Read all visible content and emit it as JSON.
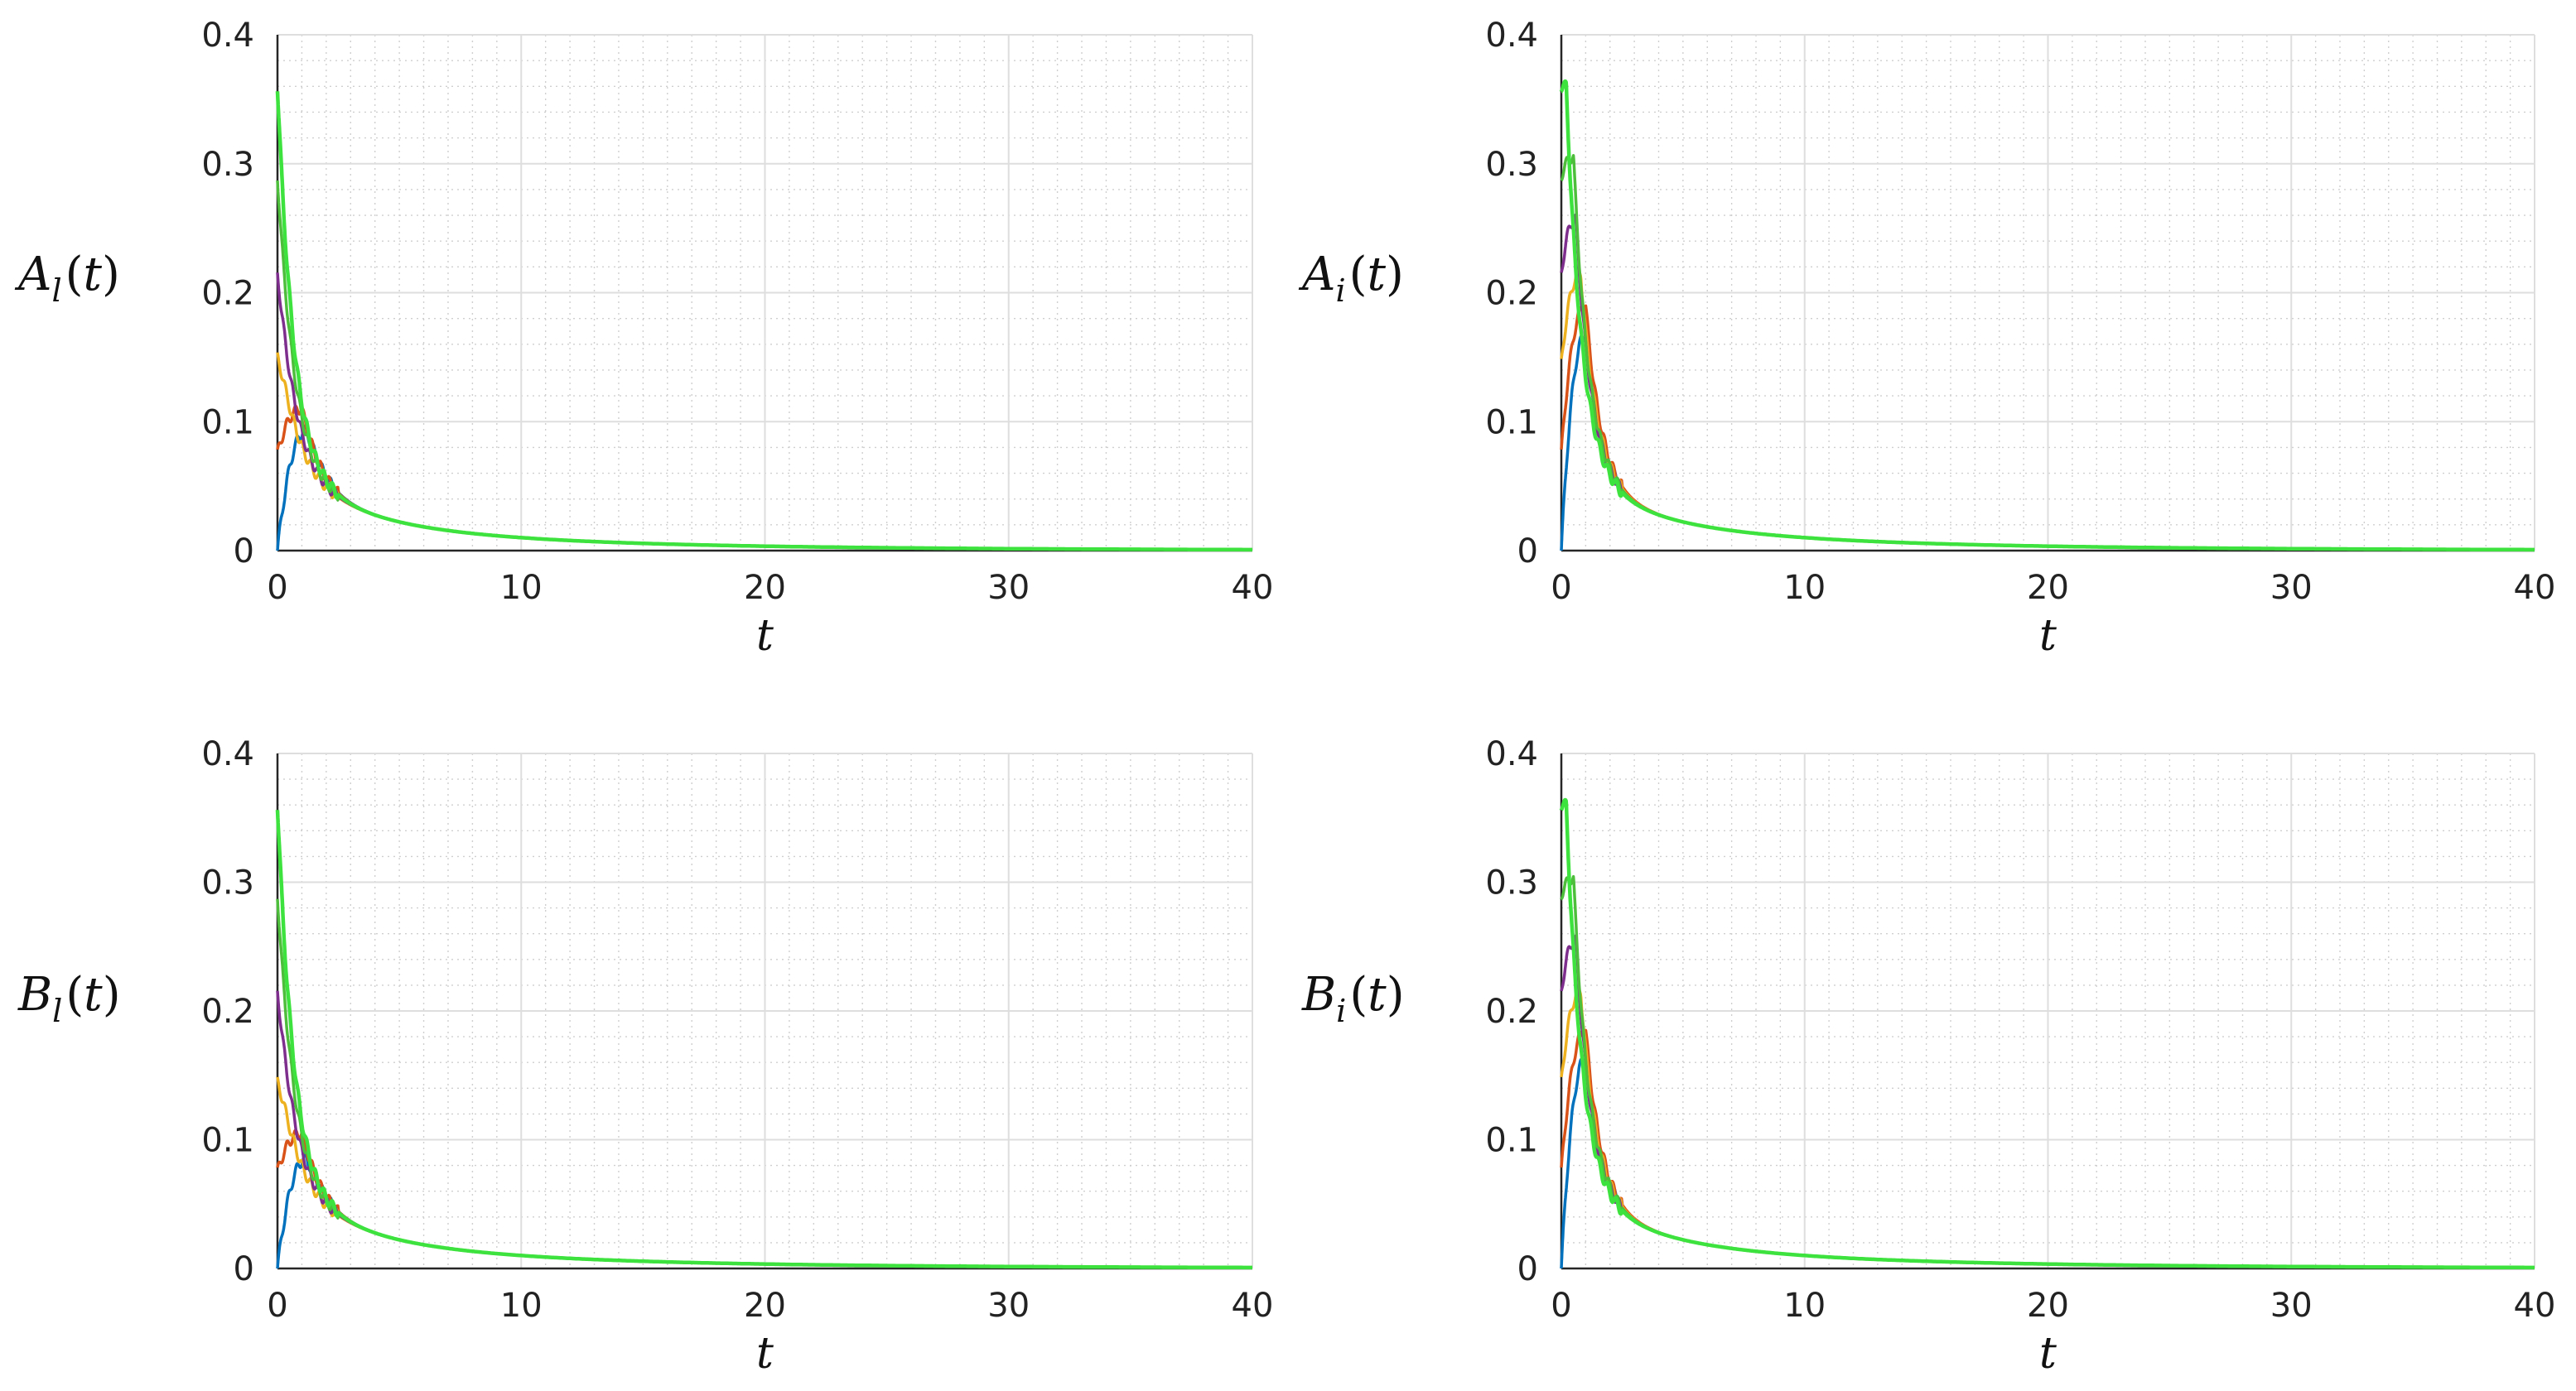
{
  "chart_data": [
    {
      "type": "line",
      "ylabel": {
        "main": "A",
        "sub": "l",
        "arg": "t"
      },
      "xlabel": "t",
      "xlim": [
        0,
        40
      ],
      "ylim": [
        0,
        0.4
      ],
      "xticks": [
        "0",
        "10",
        "20",
        "30",
        "40"
      ],
      "yticks": [
        "0",
        "0.1",
        "0.2",
        "0.3",
        "0.4"
      ],
      "grid": true,
      "minor_grid": true,
      "series": [
        {
          "color": "#0072BD",
          "start": 0.0,
          "peak": 0.093,
          "tpeak": 1.2
        },
        {
          "color": "#D95319",
          "start": 0.075,
          "peak": 0.11,
          "tpeak": 1.0
        },
        {
          "color": "#EDB120",
          "start": 0.15,
          "peak": 0.15,
          "tpeak": 0.0
        },
        {
          "color": "#7E2F8E",
          "start": 0.215,
          "peak": 0.215,
          "tpeak": 0.0
        },
        {
          "color": "#4DBE3C",
          "start": 0.29,
          "peak": 0.29,
          "tpeak": 0.0
        },
        {
          "color": "#3EE23E",
          "start": 0.36,
          "peak": 0.36,
          "tpeak": 0.0
        }
      ]
    },
    {
      "type": "line",
      "ylabel": {
        "main": "A",
        "sub": "i",
        "arg": "t"
      },
      "xlabel": "t",
      "xlim": [
        0,
        40
      ],
      "ylim": [
        0,
        0.4
      ],
      "xticks": [
        "0",
        "10",
        "20",
        "30",
        "40"
      ],
      "yticks": [
        "0",
        "0.1",
        "0.2",
        "0.3",
        "0.4"
      ],
      "grid": true,
      "minor_grid": true,
      "series": [
        {
          "color": "#0072BD",
          "start": 0.0,
          "peak": 0.167,
          "tpeak": 1.0
        },
        {
          "color": "#D95319",
          "start": 0.075,
          "peak": 0.19,
          "tpeak": 1.0
        },
        {
          "color": "#EDB120",
          "start": 0.145,
          "peak": 0.215,
          "tpeak": 0.8
        },
        {
          "color": "#7E2F8E",
          "start": 0.215,
          "peak": 0.257,
          "tpeak": 0.6
        },
        {
          "color": "#4DBE3C",
          "start": 0.29,
          "peak": 0.305,
          "tpeak": 0.5
        },
        {
          "color": "#3EE23E",
          "start": 0.36,
          "peak": 0.36,
          "tpeak": 0.2
        }
      ]
    },
    {
      "type": "line",
      "ylabel": {
        "main": "B",
        "sub": "l",
        "arg": "t"
      },
      "xlabel": "t",
      "xlim": [
        0,
        40
      ],
      "ylim": [
        0,
        0.4
      ],
      "xticks": [
        "0",
        "10",
        "20",
        "30",
        "40"
      ],
      "yticks": [
        "0",
        "0.1",
        "0.2",
        "0.3",
        "0.4"
      ],
      "grid": true,
      "minor_grid": true,
      "series": [
        {
          "color": "#0072BD",
          "start": 0.0,
          "peak": 0.085,
          "tpeak": 1.2
        },
        {
          "color": "#D95319",
          "start": 0.075,
          "peak": 0.105,
          "tpeak": 1.0
        },
        {
          "color": "#EDB120",
          "start": 0.145,
          "peak": 0.145,
          "tpeak": 0.0
        },
        {
          "color": "#7E2F8E",
          "start": 0.215,
          "peak": 0.215,
          "tpeak": 0.0
        },
        {
          "color": "#4DBE3C",
          "start": 0.29,
          "peak": 0.29,
          "tpeak": 0.0
        },
        {
          "color": "#3EE23E",
          "start": 0.36,
          "peak": 0.36,
          "tpeak": 0.0
        }
      ]
    },
    {
      "type": "line",
      "ylabel": {
        "main": "B",
        "sub": "i",
        "arg": "t"
      },
      "xlabel": "t",
      "xlim": [
        0,
        40
      ],
      "ylim": [
        0,
        0.4
      ],
      "xticks": [
        "0",
        "10",
        "20",
        "30",
        "40"
      ],
      "yticks": [
        "0",
        "0.1",
        "0.2",
        "0.3",
        "0.4"
      ],
      "grid": true,
      "minor_grid": true,
      "series": [
        {
          "color": "#0072BD",
          "start": 0.0,
          "peak": 0.163,
          "tpeak": 1.0
        },
        {
          "color": "#D95319",
          "start": 0.075,
          "peak": 0.185,
          "tpeak": 1.0
        },
        {
          "color": "#EDB120",
          "start": 0.145,
          "peak": 0.215,
          "tpeak": 0.8
        },
        {
          "color": "#7E2F8E",
          "start": 0.215,
          "peak": 0.255,
          "tpeak": 0.6
        },
        {
          "color": "#4DBE3C",
          "start": 0.29,
          "peak": 0.303,
          "tpeak": 0.5
        },
        {
          "color": "#3EE23E",
          "start": 0.36,
          "peak": 0.36,
          "tpeak": 0.2
        }
      ]
    }
  ]
}
